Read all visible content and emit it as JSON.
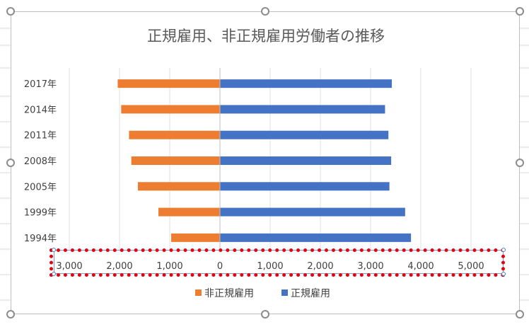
{
  "chart_data": {
    "type": "bar",
    "orientation": "horizontal",
    "title": "正規雇用、非正規雇用労働者の推移",
    "categories": [
      "2017年",
      "2014年",
      "2011年",
      "2008年",
      "2005年",
      "1999年",
      "1994年"
    ],
    "series": [
      {
        "name": "非正規雇用",
        "color": "#ed7d31",
        "values": [
          2036,
          1967,
          1811,
          1765,
          1634,
          1225,
          971
        ]
      },
      {
        "name": "正規雇用",
        "color": "#4472c4",
        "values": [
          3423,
          3288,
          3355,
          3410,
          3375,
          3688,
          3805
        ]
      }
    ],
    "x_ticks": [
      "3,000",
      "2,000",
      "1,000",
      "0",
      "1,000",
      "2,000",
      "3,000",
      "4,000",
      "5,000"
    ],
    "xlim": [
      -3000,
      5000
    ],
    "grid": true,
    "legend_position": "bottom",
    "legend": [
      "非正規雇用",
      "正規雇用"
    ]
  },
  "ui": {
    "selection_color": "#4a7ebb",
    "highlight_color": "#e60012"
  }
}
